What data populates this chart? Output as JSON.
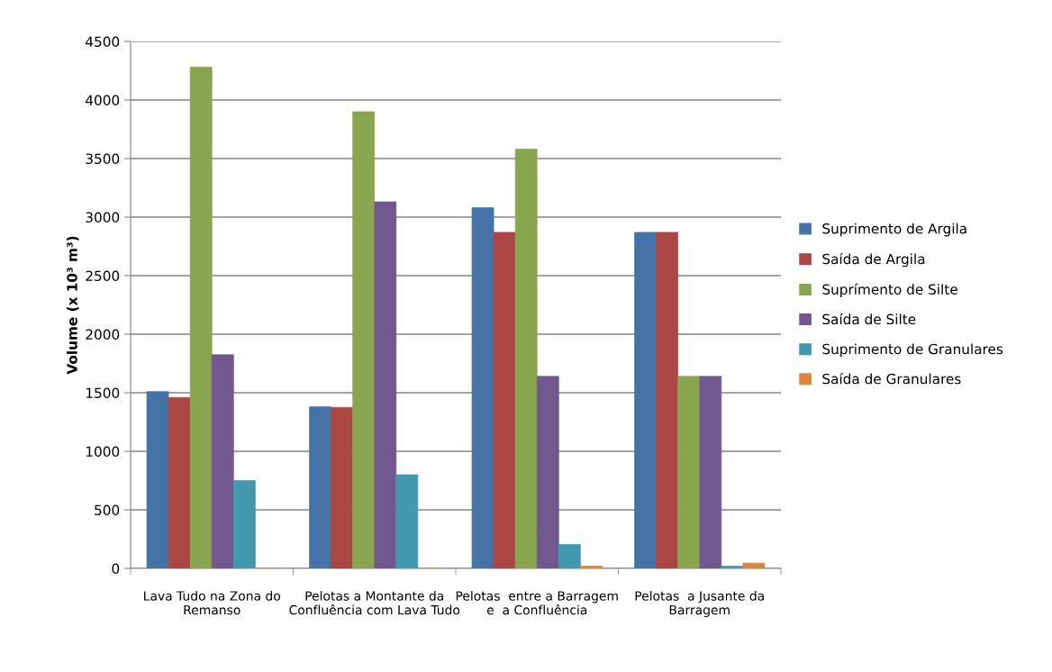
{
  "chart_data": {
    "type": "bar",
    "ylabel": "Volume (x 10³ m³)",
    "categories": [
      "Lava Tudo na Zona do Remanso",
      "Pelotas a Montante da Confluência com Lava Tudo",
      "Pelotas  entre a Barragem e  a Confluência",
      "Pelotas  a Jusante da Barragem"
    ],
    "series": [
      {
        "name": "Suprimento de Argila",
        "color": "#4572a7",
        "values": [
          1510,
          1380,
          3080,
          2870
        ]
      },
      {
        "name": "Saída de Argila",
        "color": "#aa4643",
        "values": [
          1460,
          1375,
          2870,
          2870
        ]
      },
      {
        "name": "Suprímento de Silte",
        "color": "#89a54e",
        "values": [
          4280,
          3900,
          3580,
          1640
        ]
      },
      {
        "name": "Saída de Silte",
        "color": "#71588f",
        "values": [
          1825,
          3130,
          1640,
          1640
        ]
      },
      {
        "name": "Suprimento de Granulares",
        "color": "#4198af",
        "values": [
          750,
          800,
          205,
          20
        ]
      },
      {
        "name": "Saída de Granulares",
        "color": "#db843d",
        "values": [
          0,
          0,
          20,
          45
        ]
      }
    ],
    "ylim": [
      0,
      4500
    ],
    "yticks": [
      0,
      500,
      1000,
      1500,
      2000,
      2500,
      3000,
      3500,
      4000,
      4500
    ],
    "grid": "y",
    "legend": "right"
  }
}
